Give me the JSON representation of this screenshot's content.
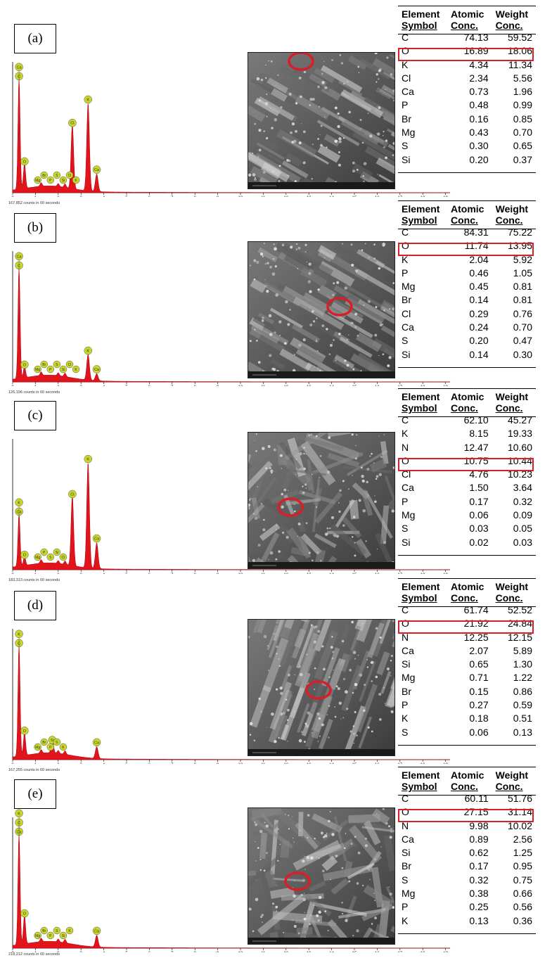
{
  "table_headers": {
    "col1_line1": "Element",
    "col1_line2": "Symbol",
    "col2_line1": "Atomic",
    "col2_line2": "Conc.",
    "col3_line1": "Weight",
    "col3_line2": "Conc."
  },
  "panels": [
    {
      "label": "(a)",
      "caption": "167,852 counts in 60 seconds",
      "highlight": "O",
      "rows": [
        {
          "el": "C",
          "at": "74.13",
          "wt": "59.52"
        },
        {
          "el": "O",
          "at": "16.89",
          "wt": "18.06"
        },
        {
          "el": "K",
          "at": "4.34",
          "wt": "11.34"
        },
        {
          "el": "Cl",
          "at": "2.34",
          "wt": "5.56"
        },
        {
          "el": "Ca",
          "at": "0.73",
          "wt": "1.96"
        },
        {
          "el": "P",
          "at": "0.48",
          "wt": "0.99"
        },
        {
          "el": "Br",
          "at": "0.16",
          "wt": "0.85"
        },
        {
          "el": "Mg",
          "at": "0.43",
          "wt": "0.70"
        },
        {
          "el": "S",
          "at": "0.30",
          "wt": "0.65"
        },
        {
          "el": "Si",
          "at": "0.20",
          "wt": "0.37"
        }
      ],
      "peaks": [
        {
          "kev": 0.28,
          "h": 0.95,
          "tags": [
            "C",
            "Ca"
          ]
        },
        {
          "kev": 0.52,
          "h": 0.22,
          "tags": [
            "O"
          ]
        },
        {
          "kev": 2.62,
          "h": 0.55,
          "tags": [
            "Cl"
          ]
        },
        {
          "kev": 3.31,
          "h": 0.75,
          "tags": [
            "K"
          ]
        },
        {
          "kev": 3.69,
          "h": 0.15,
          "tags": [
            "Ca"
          ]
        }
      ],
      "small_tags": [
        "Mg",
        "Br",
        "P",
        "S",
        "Si",
        "Cl",
        "K"
      ],
      "circle": "top"
    },
    {
      "label": "(b)",
      "caption": "126,196 counts in 60 seconds",
      "highlight": "O",
      "rows": [
        {
          "el": "C",
          "at": "84.31",
          "wt": "75.22"
        },
        {
          "el": "O",
          "at": "11.74",
          "wt": "13.95"
        },
        {
          "el": "K",
          "at": "2.04",
          "wt": "5.92"
        },
        {
          "el": "P",
          "at": "0.46",
          "wt": "1.05"
        },
        {
          "el": "Mg",
          "at": "0.45",
          "wt": "0.81"
        },
        {
          "el": "Br",
          "at": "0.14",
          "wt": "0.81"
        },
        {
          "el": "Cl",
          "at": "0.29",
          "wt": "0.76"
        },
        {
          "el": "Ca",
          "at": "0.24",
          "wt": "0.70"
        },
        {
          "el": "S",
          "at": "0.20",
          "wt": "0.47"
        },
        {
          "el": "Si",
          "at": "0.14",
          "wt": "0.30"
        }
      ],
      "peaks": [
        {
          "kev": 0.28,
          "h": 0.95,
          "tags": [
            "C",
            "Ca"
          ]
        },
        {
          "kev": 0.52,
          "h": 0.1,
          "tags": [
            "O"
          ]
        },
        {
          "kev": 3.31,
          "h": 0.22,
          "tags": [
            "K"
          ]
        },
        {
          "kev": 3.69,
          "h": 0.06,
          "tags": [
            "Ca"
          ]
        }
      ],
      "small_tags": [
        "Mg",
        "Br",
        "P",
        "S",
        "Si",
        "Cl",
        "K"
      ],
      "circle": "middle"
    },
    {
      "label": "(c)",
      "caption": "183,313 counts in 60 seconds",
      "highlight": "O",
      "rows": [
        {
          "el": "C",
          "at": "62.10",
          "wt": "45.27"
        },
        {
          "el": "K",
          "at": "8.15",
          "wt": "19.33"
        },
        {
          "el": "N",
          "at": "12.47",
          "wt": "10.60"
        },
        {
          "el": "O",
          "at": "10.75",
          "wt": "10.44"
        },
        {
          "el": "Cl",
          "at": "4.76",
          "wt": "10.23"
        },
        {
          "el": "Ca",
          "at": "1.50",
          "wt": "3.64"
        },
        {
          "el": "P",
          "at": "0.17",
          "wt": "0.32"
        },
        {
          "el": "Mg",
          "at": "0.06",
          "wt": "0.09"
        },
        {
          "el": "S",
          "at": "0.03",
          "wt": "0.05"
        },
        {
          "el": "Si",
          "at": "0.02",
          "wt": "0.03"
        }
      ],
      "peaks": [
        {
          "kev": 0.28,
          "h": 0.45,
          "tags": [
            "Ca",
            "K"
          ]
        },
        {
          "kev": 0.52,
          "h": 0.08,
          "tags": [
            "O"
          ]
        },
        {
          "kev": 2.62,
          "h": 0.6,
          "tags": [
            "Cl"
          ]
        },
        {
          "kev": 3.31,
          "h": 0.9,
          "tags": [
            "K"
          ]
        },
        {
          "kev": 3.69,
          "h": 0.22,
          "tags": [
            "Ca"
          ]
        }
      ],
      "small_tags": [
        "Mg",
        "P",
        "S",
        "Si",
        "Cl"
      ],
      "circle": "middle"
    },
    {
      "label": "(d)",
      "caption": "167,255 counts in 60 seconds",
      "highlight": "O",
      "rows": [
        {
          "el": "C",
          "at": "61.74",
          "wt": "52.52"
        },
        {
          "el": "O",
          "at": "21.92",
          "wt": "24.84"
        },
        {
          "el": "N",
          "at": "12.25",
          "wt": "12.15"
        },
        {
          "el": "Ca",
          "at": "2.07",
          "wt": "5.89"
        },
        {
          "el": "Si",
          "at": "0.65",
          "wt": "1.30"
        },
        {
          "el": "Mg",
          "at": "0.71",
          "wt": "1.22"
        },
        {
          "el": "Br",
          "at": "0.15",
          "wt": "0.86"
        },
        {
          "el": "P",
          "at": "0.27",
          "wt": "0.59"
        },
        {
          "el": "K",
          "at": "0.18",
          "wt": "0.51"
        },
        {
          "el": "S",
          "at": "0.06",
          "wt": "0.13"
        }
      ],
      "peaks": [
        {
          "kev": 0.28,
          "h": 0.95,
          "tags": [
            "C",
            "K"
          ]
        },
        {
          "kev": 0.52,
          "h": 0.2,
          "tags": [
            "O"
          ]
        },
        {
          "kev": 1.74,
          "h": 0.12,
          "tags": [
            "Si"
          ]
        },
        {
          "kev": 3.69,
          "h": 0.1,
          "tags": [
            "Ca"
          ]
        }
      ],
      "small_tags": [
        "Mg",
        "Br",
        "P",
        "S",
        "K"
      ],
      "circle": "middle"
    },
    {
      "label": "(e)",
      "caption": "218,212 counts in 60 seconds",
      "highlight": "O",
      "rows": [
        {
          "el": "C",
          "at": "60.11",
          "wt": "51.76"
        },
        {
          "el": "O",
          "at": "27.15",
          "wt": "31.14"
        },
        {
          "el": "N",
          "at": "9.98",
          "wt": "10.02"
        },
        {
          "el": "Ca",
          "at": "0.89",
          "wt": "2.56"
        },
        {
          "el": "Si",
          "at": "0.62",
          "wt": "1.25"
        },
        {
          "el": "Br",
          "at": "0.17",
          "wt": "0.95"
        },
        {
          "el": "S",
          "at": "0.32",
          "wt": "0.75"
        },
        {
          "el": "Mg",
          "at": "0.38",
          "wt": "0.66"
        },
        {
          "el": "P",
          "at": "0.25",
          "wt": "0.56"
        },
        {
          "el": "K",
          "at": "0.13",
          "wt": "0.36"
        }
      ],
      "peaks": [
        {
          "kev": 0.28,
          "h": 0.95,
          "tags": [
            "Ca",
            "C",
            "K"
          ]
        },
        {
          "kev": 0.52,
          "h": 0.25,
          "tags": [
            "O"
          ]
        },
        {
          "kev": 3.69,
          "h": 0.1,
          "tags": [
            "Ca"
          ]
        }
      ],
      "small_tags": [
        "Mg",
        "Br",
        "P",
        "S",
        "Si",
        "K"
      ],
      "circle": "middle"
    }
  ],
  "axis_ticks": [
    "0",
    "1",
    "2",
    "3",
    "4",
    "5",
    "6",
    "7",
    "8",
    "9",
    "10",
    "11",
    "12",
    "13",
    "14",
    "15",
    "16",
    "17",
    "18",
    "19"
  ],
  "colors": {
    "spectrum_fill": "#e0141a",
    "peak_tag": "#c9d62a",
    "highlight": "#d61f26"
  }
}
